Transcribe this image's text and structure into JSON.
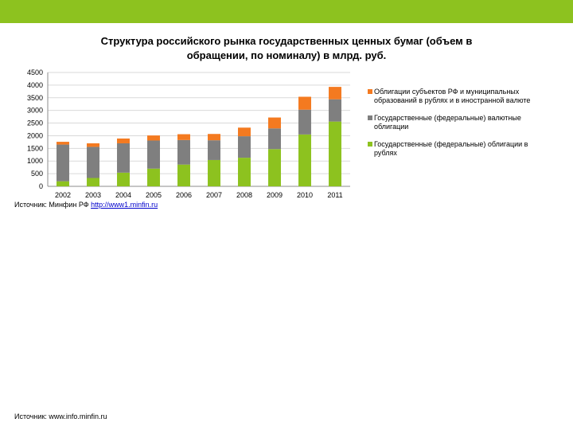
{
  "header": {
    "title": "Структура российского рынка государственных ценных бумаг (объем в обращении, по номиналу) в млрд. руб."
  },
  "colors": {
    "topbar": "#8dc21f",
    "rub_bonds": "#8dc21f",
    "fx_bonds": "#7f7f7f",
    "regional": "#f47a20"
  },
  "chart_data": {
    "type": "bar",
    "stacked": true,
    "categories": [
      "2002",
      "2003",
      "2004",
      "2005",
      "2006",
      "2007",
      "2008",
      "2009",
      "2010",
      "2011"
    ],
    "series": [
      {
        "name": "Государственные (федеральные) облигации в рублях",
        "color": "#8dc21f",
        "values": [
          200,
          330,
          540,
          700,
          860,
          1040,
          1130,
          1470,
          2050,
          2560
        ]
      },
      {
        "name": "Государственные (федеральные) валютные облигации",
        "color": "#7f7f7f",
        "values": [
          1450,
          1230,
          1160,
          1110,
          970,
          780,
          850,
          820,
          980,
          880
        ]
      },
      {
        "name": "Облигации субъектов РФ и муниципальных образований в рублях и в иностранной валюте",
        "color": "#f47a20",
        "values": [
          110,
          140,
          190,
          200,
          230,
          250,
          340,
          430,
          510,
          490
        ]
      }
    ],
    "ylim": [
      0,
      4500
    ],
    "yticks": [
      "0",
      "500",
      "1000",
      "1500",
      "2000",
      "2500",
      "3000",
      "3500",
      "4000",
      "4500"
    ],
    "grid": true,
    "legend_position": "right"
  },
  "legend_items": [
    {
      "label": "Облигации субъектов РФ и муниципальных образований в рублях и в иностранной валюте",
      "color": "#f47a20"
    },
    {
      "label": "Государственные (федеральные) валютные облигации",
      "color": "#7f7f7f"
    },
    {
      "label": "Государственные (федеральные) облигации в рублях",
      "color": "#8dc21f"
    }
  ],
  "footer": {
    "source_prefix": "Источник: Минфин РФ ",
    "source_link": "http://www1.minfin.ru",
    "source_bottom": "Источник: www.info.minfin.ru"
  }
}
